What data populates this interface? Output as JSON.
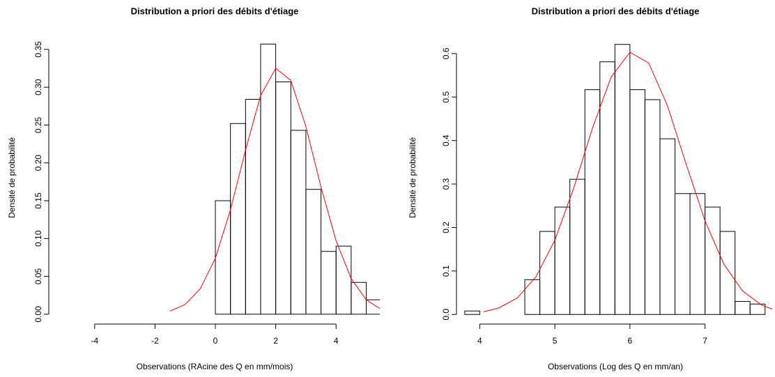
{
  "chart_data": [
    {
      "type": "histogram",
      "title": "Distribution a priori des débits d'étiage",
      "xlabel": "Observations (RAcine des Q en mm/mois)",
      "ylabel": "Densité de probabilité",
      "bins": [
        0,
        0.5,
        1,
        1.5,
        2,
        2.5,
        3,
        3.5,
        4,
        4.5,
        5,
        5.5
      ],
      "values": [
        0.15,
        0.252,
        0.284,
        0.357,
        0.307,
        0.243,
        0.165,
        0.083,
        0.09,
        0.042,
        0.019
      ],
      "color": "#000000",
      "density_curve": {
        "color": "#ff0000",
        "x": [
          -1.5,
          -1,
          -0.5,
          0,
          0.5,
          1,
          1.5,
          2,
          2.5,
          3,
          3.5,
          4,
          4.5,
          5,
          5.45
        ],
        "values": [
          0.0042,
          0.0129,
          0.0337,
          0.074,
          0.138,
          0.217,
          0.289,
          0.325,
          0.309,
          0.248,
          0.168,
          0.097,
          0.047,
          0.019,
          0.0075
        ]
      },
      "xlim": [
        -5.52,
        5.45
      ],
      "ylim": [
        -0.013,
        0.36
      ],
      "xticks": [
        -4,
        -2,
        0,
        2,
        4
      ],
      "yticks": [
        {
          "value": 0,
          "label": "0.00"
        },
        0.05,
        {
          "value": 0.1,
          "label": "0.10"
        },
        0.15,
        {
          "value": 0.2,
          "label": "0.20"
        },
        0.25,
        {
          "value": 0.3,
          "label": "0.30"
        },
        0.35
      ]
    },
    {
      "type": "histogram",
      "title": "Distribution a priori des débits d'étiage",
      "xlabel": "Observations (Log des Q en mm/an)",
      "ylabel": "Densité de probabilité",
      "bins": [
        3.8,
        4.0,
        4.2,
        4.4,
        4.6,
        4.8,
        5.0,
        5.2,
        5.4,
        5.6,
        5.8,
        6.0,
        6.2,
        6.4,
        6.6,
        6.8,
        7.0,
        7.2,
        7.4,
        7.6,
        7.8
      ],
      "values": [
        0.008,
        0,
        0,
        0,
        0.08,
        0.191,
        0.247,
        0.311,
        0.517,
        0.581,
        0.621,
        0.517,
        0.494,
        0.404,
        0.278,
        0.278,
        0.247,
        0.191,
        0.03,
        0.024
      ],
      "color": "#000000",
      "density_curve": {
        "color": "#ff0000",
        "x": [
          4.05,
          4.25,
          4.5,
          4.75,
          5,
          5.25,
          5.5,
          5.75,
          6,
          6.25,
          6.5,
          6.75,
          7,
          7.25,
          7.5,
          7.75,
          7.9
        ],
        "values": [
          0.0061,
          0.0147,
          0.038,
          0.087,
          0.171,
          0.29,
          0.428,
          0.546,
          0.603,
          0.578,
          0.48,
          0.345,
          0.215,
          0.116,
          0.054,
          0.022,
          0.012
        ]
      },
      "xlim": [
        3.69,
        7.895
      ],
      "ylim": [
        -0.022,
        0.627
      ],
      "xticks": [
        4,
        5,
        6,
        7
      ],
      "yticks": [
        {
          "value": 0,
          "label": "0.0"
        },
        0.1,
        0.2,
        0.3,
        0.4,
        0.5,
        0.6
      ]
    }
  ]
}
